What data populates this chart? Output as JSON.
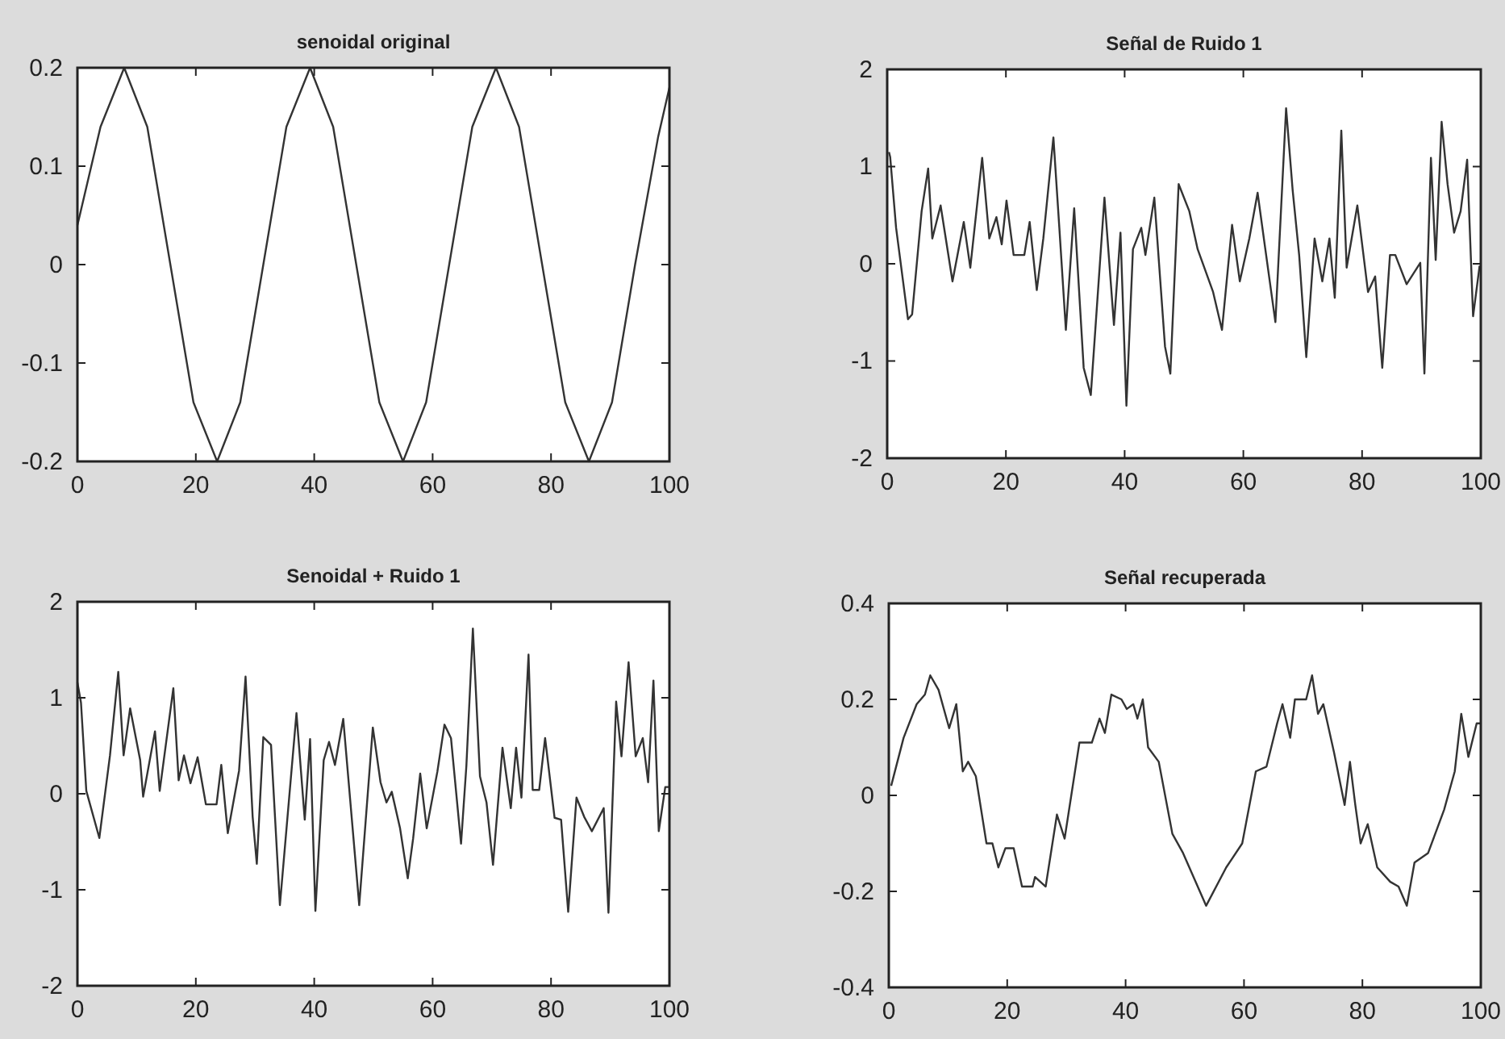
{
  "chart_data": [
    {
      "type": "line",
      "title": "senoidal original",
      "xlim": [
        0,
        100
      ],
      "ylim": [
        -0.2,
        0.2
      ],
      "xticks": [
        0,
        20,
        40,
        60,
        80,
        100
      ],
      "yticks": [
        -0.2,
        -0.1,
        0,
        0.1,
        0.2
      ],
      "series": [
        {
          "color": "#333333",
          "x": [
            0,
            3.9,
            7.9,
            11.8,
            15.7,
            19.6,
            23.6,
            27.5,
            31.4,
            35.3,
            39.3,
            43.2,
            47.1,
            51,
            55,
            58.9,
            62.8,
            66.7,
            70.7,
            74.6,
            78.5,
            82.4,
            86.4,
            90.3,
            94.2,
            98.1,
            100
          ],
          "values": [
            0.04,
            0.14,
            0.2,
            0.14,
            0,
            -0.14,
            -0.2,
            -0.14,
            0,
            0.14,
            0.2,
            0.14,
            0,
            -0.14,
            -0.2,
            -0.14,
            0,
            0.14,
            0.2,
            0.14,
            0,
            -0.14,
            -0.2,
            -0.14,
            0,
            0.13,
            0.18
          ]
        }
      ]
    },
    {
      "type": "line",
      "title": "Señal de Ruido 1",
      "xlim": [
        0,
        100
      ],
      "ylim": [
        -2,
        2
      ],
      "xticks": [
        0,
        20,
        40,
        60,
        80,
        100
      ],
      "yticks": [
        -2,
        -1,
        0,
        1,
        2
      ],
      "series": [
        {
          "color": "#333333",
          "x": [
            0.3,
            0.5,
            1.5,
            3.5,
            4.2,
            5.8,
            6.9,
            7.6,
            9,
            11,
            12.9,
            14,
            16,
            17.2,
            18.4,
            19.3,
            20.1,
            21.3,
            23.1,
            24,
            25.2,
            26.3,
            28,
            29,
            30.1,
            31.5,
            33.1,
            34.3,
            36.6,
            38.2,
            39.3,
            40.3,
            41.4,
            42.8,
            43.5,
            45,
            46.8,
            47.7,
            49.1,
            50.9,
            52.3,
            54.9,
            56.4,
            58.1,
            59.4,
            61,
            62.4,
            63.7,
            65.4,
            67.2,
            68.3,
            69.4,
            70.6,
            72,
            73.3,
            74.5,
            75.4,
            76.5,
            77.4,
            79.2,
            81,
            82.2,
            83.4,
            84.7,
            85.6,
            87.5,
            89.8,
            90.5,
            91.6,
            92.4,
            93.4,
            94.4,
            95.5,
            96.6,
            97.7,
            98.7,
            99.8
          ],
          "values": [
            1.15,
            1.1,
            0.37,
            -0.57,
            -0.52,
            0.54,
            0.98,
            0.26,
            0.6,
            -0.18,
            0.43,
            -0.04,
            1.09,
            0.26,
            0.48,
            0.2,
            0.65,
            0.09,
            0.09,
            0.43,
            -0.27,
            0.26,
            1.3,
            0.37,
            -0.68,
            0.57,
            -1.07,
            -1.35,
            0.68,
            -0.63,
            0.32,
            -1.46,
            0.15,
            0.37,
            0.09,
            0.68,
            -0.85,
            -1.13,
            0.82,
            0.54,
            0.15,
            -0.29,
            -0.68,
            0.4,
            -0.18,
            0.26,
            0.73,
            0.15,
            -0.6,
            1.6,
            0.76,
            0.09,
            -0.96,
            0.26,
            -0.18,
            0.26,
            -0.35,
            1.37,
            -0.04,
            0.6,
            -0.29,
            -0.13,
            -1.07,
            0.09,
            0.09,
            -0.21,
            0.01,
            -1.13,
            1.09,
            0.04,
            1.46,
            0.82,
            0.32,
            0.54,
            1.07,
            -0.54,
            -0.02
          ]
        }
      ]
    },
    {
      "type": "line",
      "title": "Senoidal + Ruido 1",
      "xlim": [
        0,
        100
      ],
      "ylim": [
        -2,
        2
      ],
      "xticks": [
        0,
        20,
        40,
        60,
        80,
        100
      ],
      "yticks": [
        -2,
        -1,
        0,
        1,
        2
      ],
      "series": [
        {
          "color": "#333333",
          "x": [
            0,
            0.6,
            1.5,
            3.7,
            5.5,
            6.9,
            7.8,
            8.9,
            10.6,
            11.1,
            13.1,
            13.9,
            16.2,
            17.1,
            18,
            19.1,
            20.3,
            21.7,
            23.5,
            24.3,
            25.4,
            27.3,
            28.4,
            29.6,
            30.3,
            31.4,
            32.7,
            34.2,
            37,
            38.4,
            39.3,
            40.2,
            41.6,
            42.5,
            43.5,
            44.9,
            47.6,
            49.9,
            51.2,
            52.2,
            53.1,
            54.5,
            55.8,
            56.7,
            57.9,
            59,
            60.8,
            62,
            63.1,
            64.8,
            65.7,
            66.8,
            68,
            69.1,
            70.2,
            71.8,
            73.2,
            74.1,
            75,
            76.2,
            76.9,
            78,
            79,
            80.6,
            81.7,
            82.9,
            84.3,
            85.6,
            86.9,
            88.9,
            89.7,
            91,
            91.9,
            93.1,
            94.3,
            95.5,
            96.4,
            97.3,
            98.2,
            99.3,
            100
          ],
          "values": [
            1.16,
            0.95,
            0.03,
            -0.46,
            0.4,
            1.27,
            0.4,
            0.89,
            0.35,
            -0.03,
            0.65,
            0.03,
            1.1,
            0.14,
            0.4,
            0.11,
            0.38,
            -0.11,
            -0.11,
            0.3,
            -0.41,
            0.24,
            1.22,
            -0.24,
            -0.73,
            0.59,
            0.51,
            -1.16,
            0.84,
            -0.27,
            0.57,
            -1.22,
            0.35,
            0.54,
            0.3,
            0.78,
            -1.16,
            0.69,
            0.12,
            -0.09,
            0.02,
            -0.36,
            -0.88,
            -0.47,
            0.21,
            -0.36,
            0.23,
            0.72,
            0.58,
            -0.52,
            0.29,
            1.72,
            0.18,
            -0.09,
            -0.74,
            0.48,
            -0.15,
            0.48,
            -0.04,
            1.45,
            0.04,
            0.04,
            0.58,
            -0.25,
            -0.27,
            -1.23,
            -0.04,
            -0.24,
            -0.39,
            -0.15,
            -1.24,
            0.96,
            0.39,
            1.37,
            0.39,
            0.58,
            0.12,
            1.18,
            -0.39,
            0.07,
            0.07
          ]
        }
      ]
    },
    {
      "type": "line",
      "title": "Señal recuperada",
      "xlim": [
        0,
        100
      ],
      "ylim": [
        -0.4,
        0.4
      ],
      "xticks": [
        0,
        20,
        40,
        60,
        80,
        100
      ],
      "yticks": [
        -0.4,
        -0.2,
        0,
        0.2,
        0.4
      ],
      "series": [
        {
          "color": "#333333",
          "x": [
            0.4,
            2.5,
            4.7,
            6.1,
            7,
            8.4,
            10.2,
            11.4,
            12.5,
            13.4,
            14.7,
            16.5,
            17.5,
            18.5,
            19.7,
            21.1,
            22.5,
            24.3,
            24.7,
            26.5,
            28.4,
            29.7,
            32.2,
            34.3,
            35.6,
            36.5,
            37.6,
            39.3,
            40.2,
            41.3,
            42,
            42.9,
            43.8,
            45.6,
            47.9,
            49.7,
            53.6,
            57,
            59.7,
            62,
            63.8,
            65.6,
            66.5,
            67.8,
            68.6,
            70.5,
            71.5,
            72.5,
            73.4,
            75.2,
            77,
            77.9,
            78.8,
            79.7,
            80.9,
            82.5,
            84.7,
            86.1,
            87.5,
            88.8,
            91.1,
            93.8,
            95.6,
            96.7,
            97.9,
            99.3,
            99.9
          ],
          "values": [
            0.02,
            0.12,
            0.19,
            0.21,
            0.25,
            0.22,
            0.14,
            0.19,
            0.05,
            0.07,
            0.04,
            -0.1,
            -0.1,
            -0.15,
            -0.11,
            -0.11,
            -0.19,
            -0.19,
            -0.17,
            -0.19,
            -0.04,
            -0.09,
            0.11,
            0.11,
            0.16,
            0.13,
            0.21,
            0.2,
            0.18,
            0.19,
            0.16,
            0.2,
            0.1,
            0.07,
            -0.08,
            -0.12,
            -0.23,
            -0.15,
            -0.1,
            0.05,
            0.06,
            0.15,
            0.19,
            0.12,
            0.2,
            0.2,
            0.25,
            0.17,
            0.19,
            0.09,
            -0.02,
            0.07,
            -0.02,
            -0.1,
            -0.06,
            -0.15,
            -0.18,
            -0.19,
            -0.23,
            -0.14,
            -0.12,
            -0.03,
            0.05,
            0.17,
            0.08,
            0.15,
            0.15
          ]
        }
      ]
    }
  ]
}
